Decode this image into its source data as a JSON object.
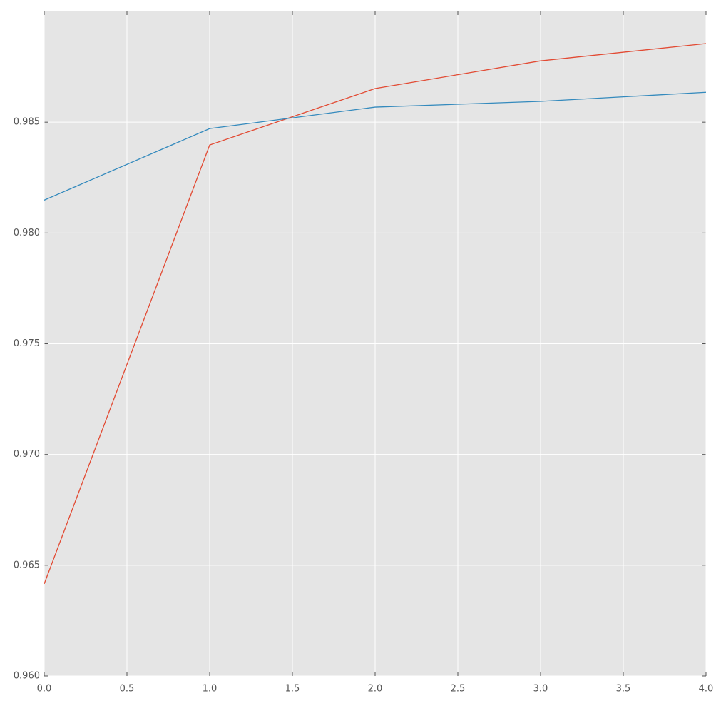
{
  "chart_data": {
    "type": "line",
    "x": [
      0,
      1,
      2,
      3,
      4
    ],
    "series": [
      {
        "color": "#E24A33",
        "values": [
          0.96416,
          0.98397,
          0.98652,
          0.98777,
          0.98855
        ]
      },
      {
        "color": "#348ABD",
        "values": [
          0.98148,
          0.98471,
          0.98568,
          0.98594,
          0.98635
        ]
      }
    ],
    "xlim": [
      0,
      4
    ],
    "xticks": [
      {
        "value": 0,
        "label": "0.0"
      },
      0.5,
      {
        "value": 1,
        "label": "1.0"
      },
      1.5,
      {
        "value": 2,
        "label": "2.0"
      },
      2.5,
      {
        "value": 3,
        "label": "3.0"
      },
      3.5,
      {
        "value": 4,
        "label": "4.0"
      }
    ],
    "ylim": [
      0.96,
      0.99
    ],
    "yticks": [
      {
        "value": 0.96,
        "label": "0.960"
      },
      0.965,
      {
        "value": 0.97,
        "label": "0.970"
      },
      0.975,
      {
        "value": 0.98,
        "label": "0.980"
      },
      0.985
    ],
    "grid": true,
    "background": "#E5E5E5"
  }
}
